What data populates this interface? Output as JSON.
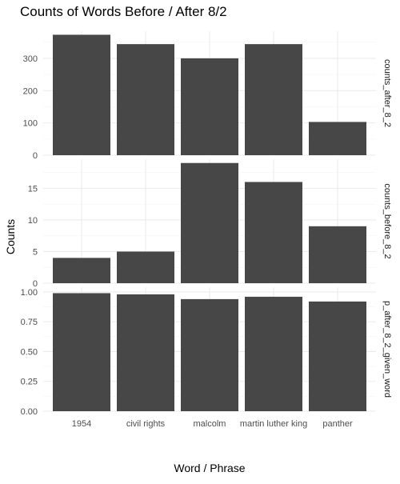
{
  "chart_data": {
    "type": "bar",
    "title": "Counts of Words Before / After 8/2",
    "xlabel": "Word / Phrase",
    "ylabel": "Counts",
    "categories": [
      "1954",
      "civil rights",
      "malcolm",
      "martin luther king",
      "panther"
    ],
    "grid": true,
    "facet_layout": "stacked vertically, free y scales, strip labels on right",
    "bar_color": "#474747",
    "panels": [
      {
        "label": "counts_after_8_2",
        "values": [
          373,
          344,
          300,
          344,
          103
        ],
        "ylim": [
          0,
          384
        ],
        "yticks": [
          0,
          100,
          200,
          300
        ],
        "ytick_labels": [
          "0",
          "100",
          "200",
          "300"
        ]
      },
      {
        "label": "counts_before_8_2",
        "values": [
          4,
          5,
          19,
          16,
          9
        ],
        "ylim": [
          0,
          19.6
        ],
        "yticks": [
          0,
          5,
          10,
          15
        ],
        "ytick_labels": [
          "0",
          "5",
          "10",
          "15"
        ]
      },
      {
        "label": "p_after_8_2_given_word",
        "values": [
          0.99,
          0.98,
          0.94,
          0.96,
          0.92
        ],
        "ylim": [
          0,
          1.04
        ],
        "yticks": [
          0,
          0.25,
          0.5,
          0.75,
          1.0
        ],
        "ytick_labels": [
          "0.00",
          "0.25",
          "0.50",
          "0.75",
          "1.00"
        ]
      }
    ]
  }
}
